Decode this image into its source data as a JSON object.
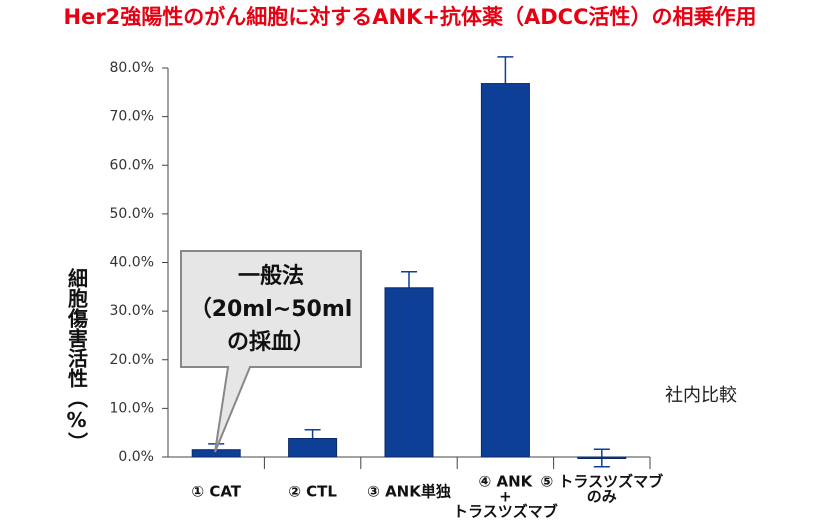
{
  "chart_data": {
    "type": "bar",
    "title": "Her2強陽性のがん細胞に対するANK+抗体薬（ADCC活性）の相乗作用",
    "y_label": "細胞傷害活性（%）",
    "categories": [
      [
        "① CAT"
      ],
      [
        "② CTL"
      ],
      [
        "③ ANK単独"
      ],
      [
        "④ ANK",
        "+",
        "トラスツズマブ"
      ],
      [
        "⑤ トラスツズマブ",
        "のみ"
      ]
    ],
    "values": [
      1.5,
      3.8,
      34.8,
      76.8,
      -0.2
    ],
    "errors": [
      1.2,
      1.8,
      3.3,
      5.5,
      1.8
    ],
    "color": "#0e3f97",
    "ylim": [
      0,
      80
    ],
    "yticks": [
      {
        "value": 0,
        "label": "0.0%"
      },
      {
        "value": 10,
        "label": "10.0%"
      },
      {
        "value": 20,
        "label": "20.0%"
      },
      {
        "value": 30,
        "label": "30.0%"
      },
      {
        "value": 40,
        "label": "40.0%"
      },
      {
        "value": 50,
        "label": "50.0%"
      },
      {
        "value": 60,
        "label": "60.0%"
      },
      {
        "value": 70,
        "label": "70.0%"
      },
      {
        "value": 80,
        "label": "80.0%"
      }
    ],
    "callout": [
      "一般法",
      "（20ml~50ml",
      "の採血）"
    ],
    "note": "社内比較"
  }
}
